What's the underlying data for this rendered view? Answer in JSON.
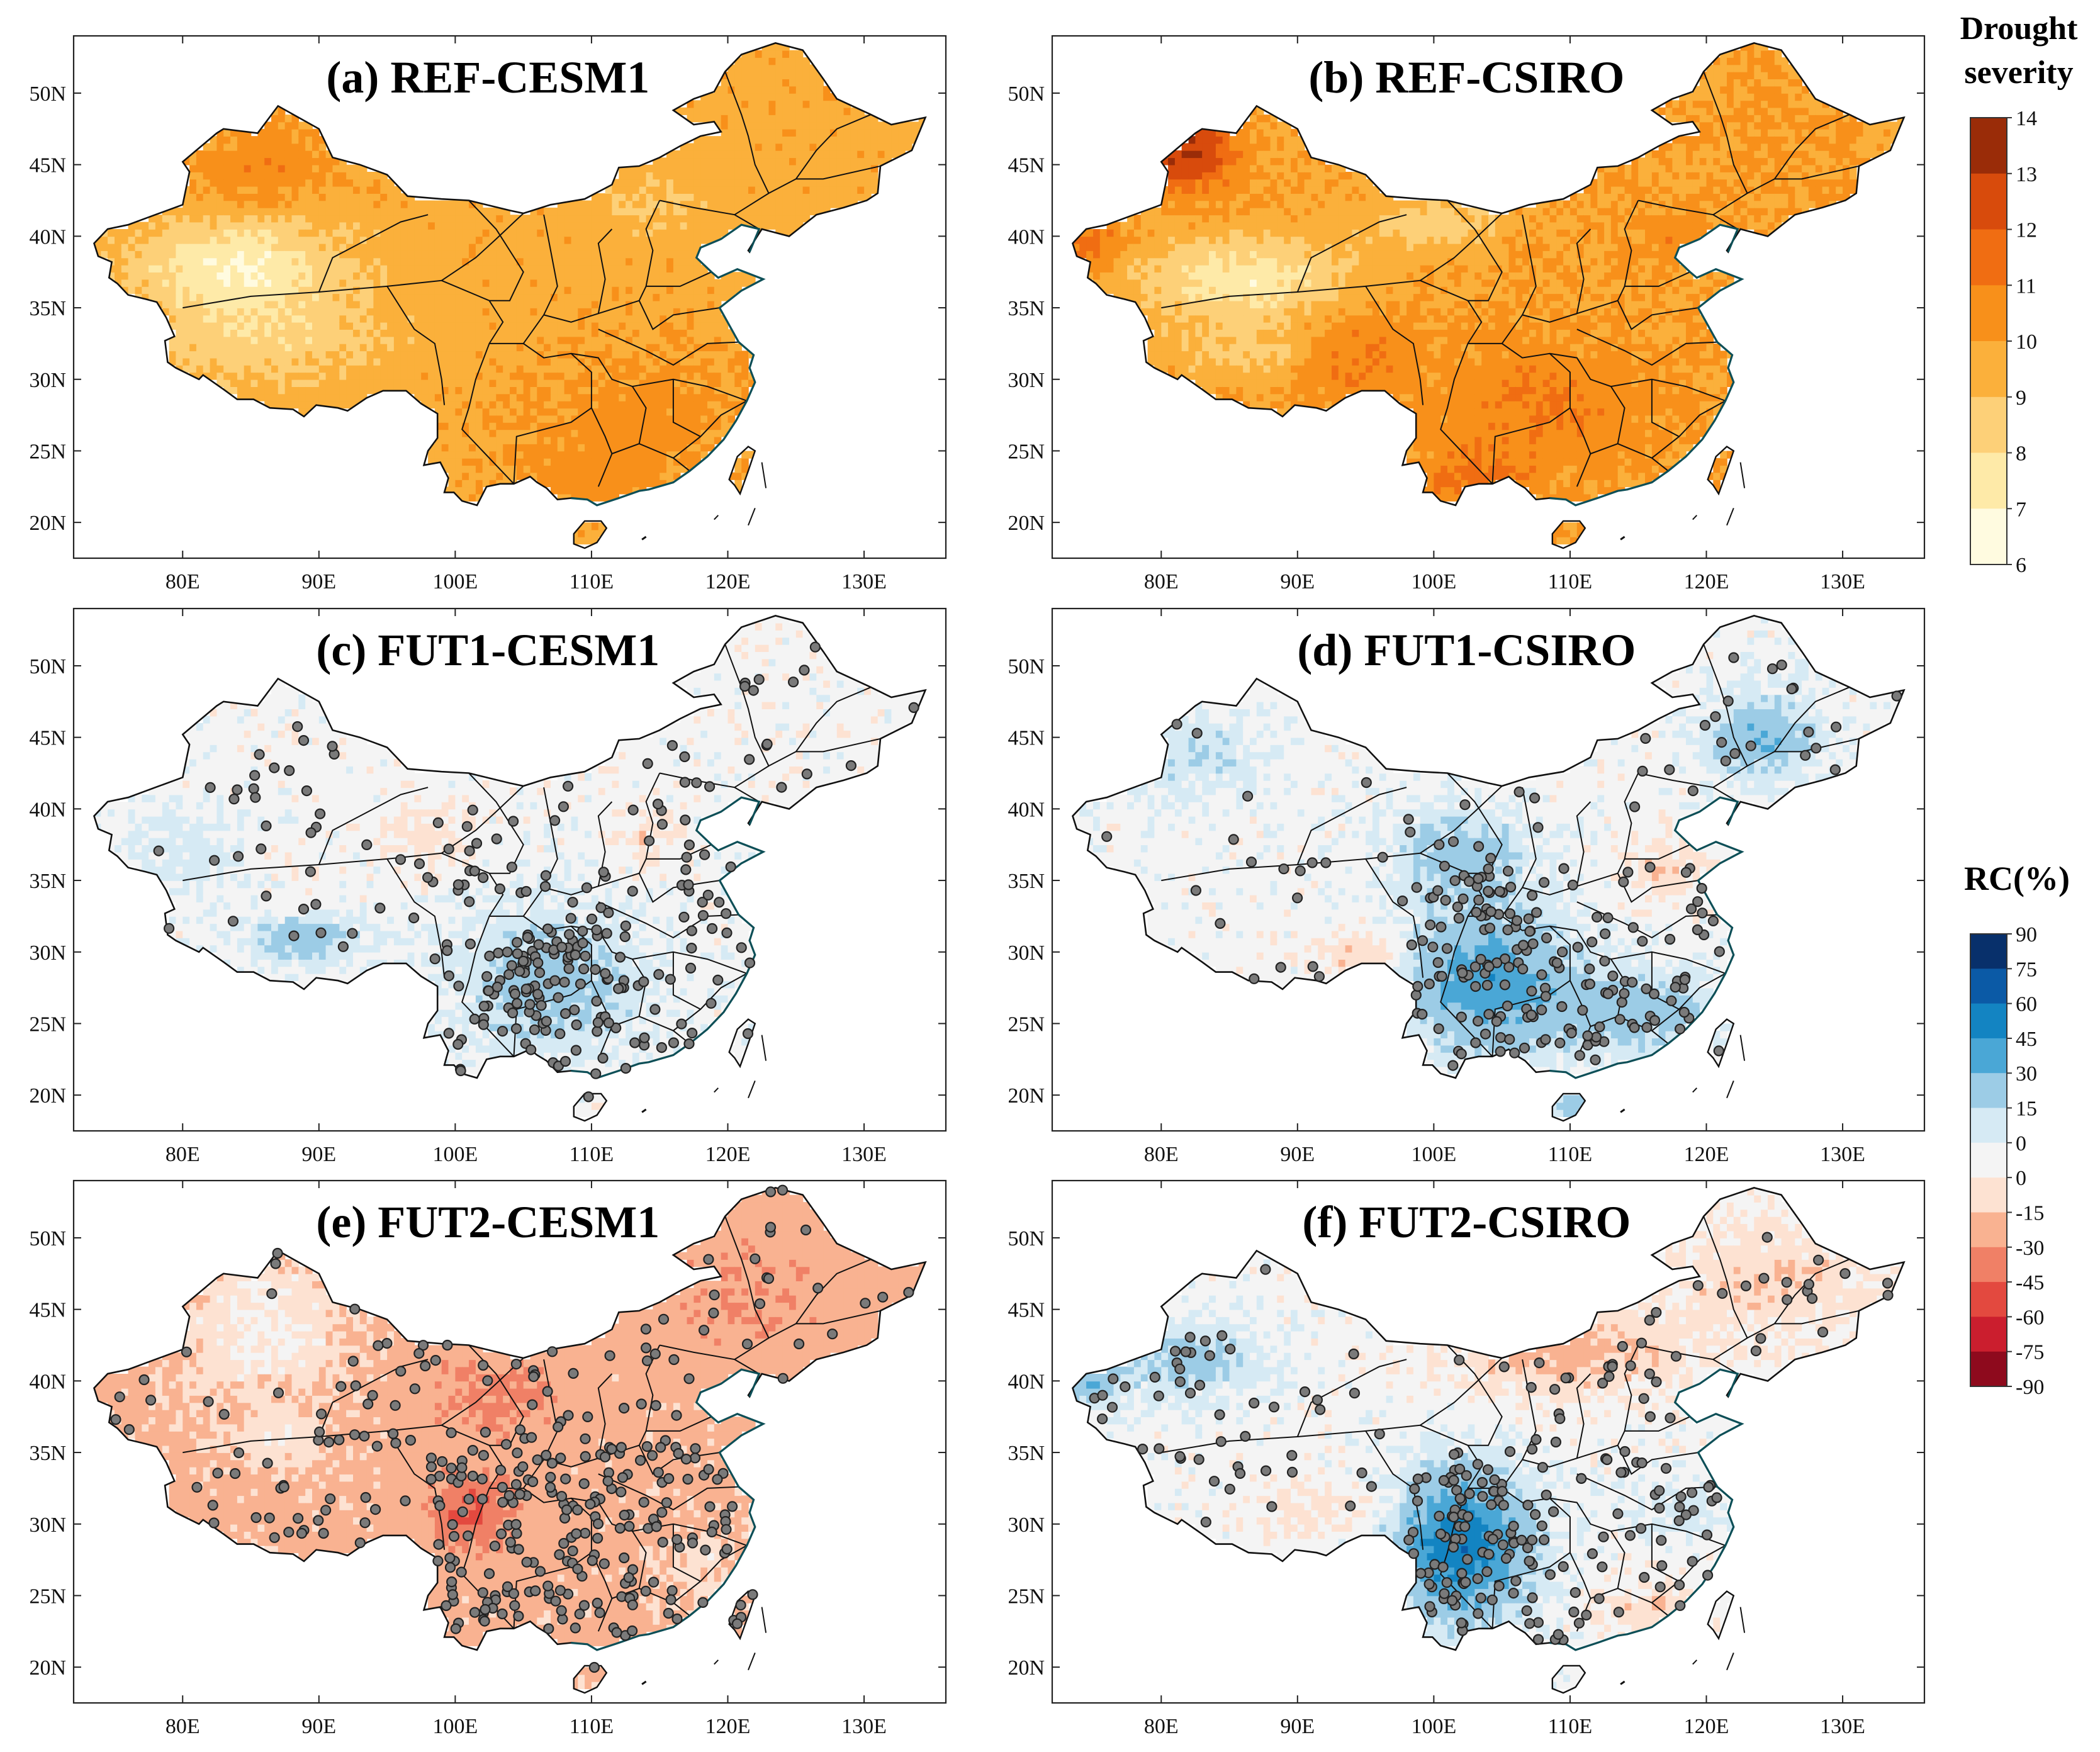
{
  "figure": {
    "x_axis_ticks": [
      "80E",
      "90E",
      "100E",
      "110E",
      "120E",
      "130E"
    ],
    "y_axis_ticks": [
      "50N",
      "45N",
      "40N",
      "35N",
      "30N",
      "25N",
      "20N"
    ],
    "x_axis_values": [
      80,
      90,
      100,
      110,
      120,
      130
    ],
    "y_axis_values": [
      50,
      45,
      40,
      35,
      30,
      25,
      20
    ],
    "lon_range": [
      72,
      136
    ],
    "lat_range": [
      17.5,
      54
    ]
  },
  "panels": [
    {
      "id": "a",
      "title": "(a) REF-CESM1",
      "variable": "Drought severity",
      "scheme": "severity",
      "grid_seed": 11,
      "stations": 0
    },
    {
      "id": "b",
      "title": "(b) REF-CSIRO",
      "variable": "Drought severity",
      "scheme": "severity",
      "grid_seed": 23,
      "stations": 0
    },
    {
      "id": "c",
      "title": "(c) FUT1-CESM1",
      "variable": "RC(%)",
      "scheme": "rc",
      "grid_seed": 37,
      "stations": 260
    },
    {
      "id": "d",
      "title": "(d) FUT1-CSIRO",
      "variable": "RC(%)",
      "scheme": "rc",
      "grid_seed": 41,
      "stations": 230
    },
    {
      "id": "e",
      "title": "(e) FUT2-CESM1",
      "variable": "RC(%)",
      "scheme": "rc",
      "grid_seed": 53,
      "stations": 330
    },
    {
      "id": "f",
      "title": "(f) FUT2-CSIRO",
      "variable": "RC(%)",
      "scheme": "rc",
      "grid_seed": 67,
      "stations": 250
    }
  ],
  "legend_severity": {
    "title_line1": "Drought",
    "title_line2": "severity",
    "labels": [
      "14",
      "13",
      "12",
      "11",
      "10",
      "9",
      "8",
      "7",
      "6"
    ],
    "colors": [
      "#9a2c08",
      "#d84b0c",
      "#f06d12",
      "#f8901a",
      "#fbb03b",
      "#fdd078",
      "#feeaa8",
      "#fffbe0"
    ]
  },
  "legend_rc": {
    "title": "RC(%)",
    "labels": [
      "90",
      "75",
      "60",
      "45",
      "30",
      "15",
      "0",
      "0",
      "-15",
      "-30",
      "-45",
      "-60",
      "-75",
      "-90"
    ],
    "colors": [
      "#08306b",
      "#0b5aa6",
      "#1384c2",
      "#4aa7d6",
      "#9ccce6",
      "#d6eaf4",
      "#f4f4f4",
      "#fde2d2",
      "#f9b291",
      "#f08066",
      "#e3493f",
      "#cb1e2e",
      "#8e0a1d"
    ]
  },
  "colors": {
    "border": "#111111",
    "coast": "#0d4f57",
    "station_fill": "#7a7a7a",
    "station_edge": "#222222"
  }
}
